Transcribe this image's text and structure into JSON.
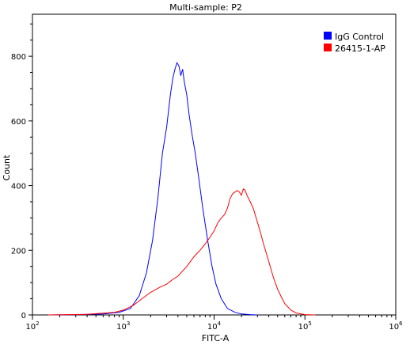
{
  "colors": {
    "igg_control": "#0000ff",
    "antibody": "#ff0000",
    "axis": "#000000"
  },
  "chart_data": {
    "type": "line",
    "title": "Multi-sample: P2",
    "xlabel": "FITC-A",
    "ylabel": "Count",
    "x_scale": "log",
    "xlim": [
      100,
      1000000
    ],
    "ylim": [
      0,
      930
    ],
    "x_ticks": [
      {
        "value": 100,
        "base": "10",
        "exp": "2"
      },
      {
        "value": 1000,
        "base": "10",
        "exp": "3"
      },
      {
        "value": 10000,
        "base": "10",
        "exp": "4"
      },
      {
        "value": 100000,
        "base": "10",
        "exp": "5"
      },
      {
        "value": 1000000,
        "base": "10",
        "exp": "6"
      }
    ],
    "y_ticks": [
      0,
      200,
      400,
      600,
      800
    ],
    "legend_position": "top-right",
    "series": [
      {
        "name": "IgG Control",
        "color": "#0000ff",
        "x": [
          150,
          300,
          600,
          900,
          1200,
          1500,
          1800,
          2100,
          2400,
          2700,
          3000,
          3300,
          3500,
          3700,
          3900,
          4100,
          4300,
          4500,
          4700,
          5000,
          5300,
          5700,
          6200,
          6800,
          7500,
          8500,
          9500,
          10500,
          12000,
          14000,
          17000,
          20000,
          25000,
          30000
        ],
        "y": [
          0,
          1,
          3,
          8,
          20,
          60,
          130,
          230,
          360,
          500,
          580,
          680,
          730,
          760,
          780,
          770,
          740,
          760,
          720,
          680,
          620,
          560,
          500,
          420,
          330,
          230,
          150,
          95,
          50,
          20,
          8,
          3,
          1,
          0
        ]
      },
      {
        "name": "26415-1-AP",
        "color": "#ff0000",
        "x": [
          150,
          400,
          800,
          1000,
          1300,
          1600,
          2000,
          2500,
          3000,
          3500,
          4000,
          5000,
          6000,
          7000,
          8000,
          9000,
          10000,
          11000,
          12000,
          13000,
          14000,
          15000,
          16000,
          17000,
          18000,
          19000,
          20000,
          21000,
          22000,
          23000,
          24000,
          25000,
          27000,
          29000,
          32000,
          35000,
          40000,
          45000,
          50000,
          55000,
          60000,
          70000,
          80000,
          100000,
          130000
        ],
        "y": [
          0,
          2,
          8,
          15,
          30,
          50,
          70,
          85,
          95,
          110,
          120,
          150,
          180,
          200,
          220,
          240,
          260,
          285,
          300,
          310,
          330,
          360,
          375,
          380,
          385,
          380,
          370,
          390,
          385,
          370,
          360,
          350,
          330,
          300,
          260,
          220,
          165,
          115,
          80,
          55,
          35,
          15,
          6,
          1,
          0
        ]
      }
    ]
  }
}
